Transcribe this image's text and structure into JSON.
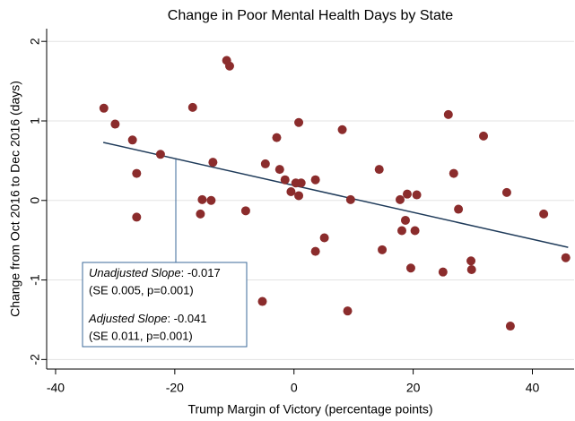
{
  "chart_data": {
    "type": "scatter",
    "title": "Change in Poor Mental Health Days by State",
    "xlabel": "Trump Margin of Victory (percentage points)",
    "ylabel": "Change from Oct 2016 to Dec 2016 (days)",
    "color": "#8b2c2c",
    "grid": true,
    "xlim": [
      -41.5,
      47
    ],
    "ylim": [
      -2.12,
      2.16
    ],
    "xticks": [
      -40,
      -20,
      0,
      20,
      40
    ],
    "yticks": [
      -2,
      -1,
      0,
      1,
      2
    ],
    "x": [
      -31.9,
      -30.0,
      -27.1,
      -26.4,
      -26.4,
      -22.4,
      -17.0,
      -15.7,
      -15.4,
      -13.9,
      -13.6,
      -11.3,
      -10.8,
      -8.1,
      -5.3,
      -4.8,
      -2.9,
      -2.4,
      -1.5,
      -0.5,
      0.3,
      0.8,
      0.8,
      1.2,
      3.6,
      3.6,
      5.1,
      8.1,
      9.0,
      9.5,
      14.3,
      14.8,
      17.8,
      18.1,
      18.7,
      19.0,
      19.6,
      20.3,
      20.6,
      25.0,
      25.9,
      26.8,
      27.6,
      29.7,
      29.8,
      31.8,
      35.7,
      36.3,
      41.9,
      45.6
    ],
    "values": [
      1.16,
      0.96,
      0.76,
      0.34,
      -0.21,
      0.58,
      1.17,
      -0.17,
      0.01,
      0.0,
      0.48,
      1.76,
      1.69,
      -0.13,
      -1.27,
      0.46,
      0.79,
      0.39,
      0.26,
      0.11,
      0.22,
      0.98,
      0.06,
      0.22,
      0.26,
      -0.64,
      -0.47,
      0.89,
      -1.39,
      0.01,
      0.39,
      -0.62,
      0.01,
      -0.38,
      -0.25,
      0.08,
      -0.85,
      -0.38,
      0.07,
      -0.9,
      1.08,
      0.34,
      -0.11,
      -0.76,
      -0.87,
      0.81,
      0.1,
      -1.58,
      -0.17,
      -0.72
    ],
    "fit": {
      "color": "#1f3b5a",
      "x": [
        -32,
        46
      ],
      "y": [
        0.73,
        -0.59
      ]
    },
    "annotation": [
      {
        "label": "Unadjusted Slope",
        "text": ": -0.017"
      },
      {
        "text": "(SE 0.005, p=0.001)"
      },
      {
        "label": "Adjusted Slope",
        "text": ": -0.041"
      },
      {
        "text": "(SE 0.011, p=0.001)"
      }
    ]
  }
}
